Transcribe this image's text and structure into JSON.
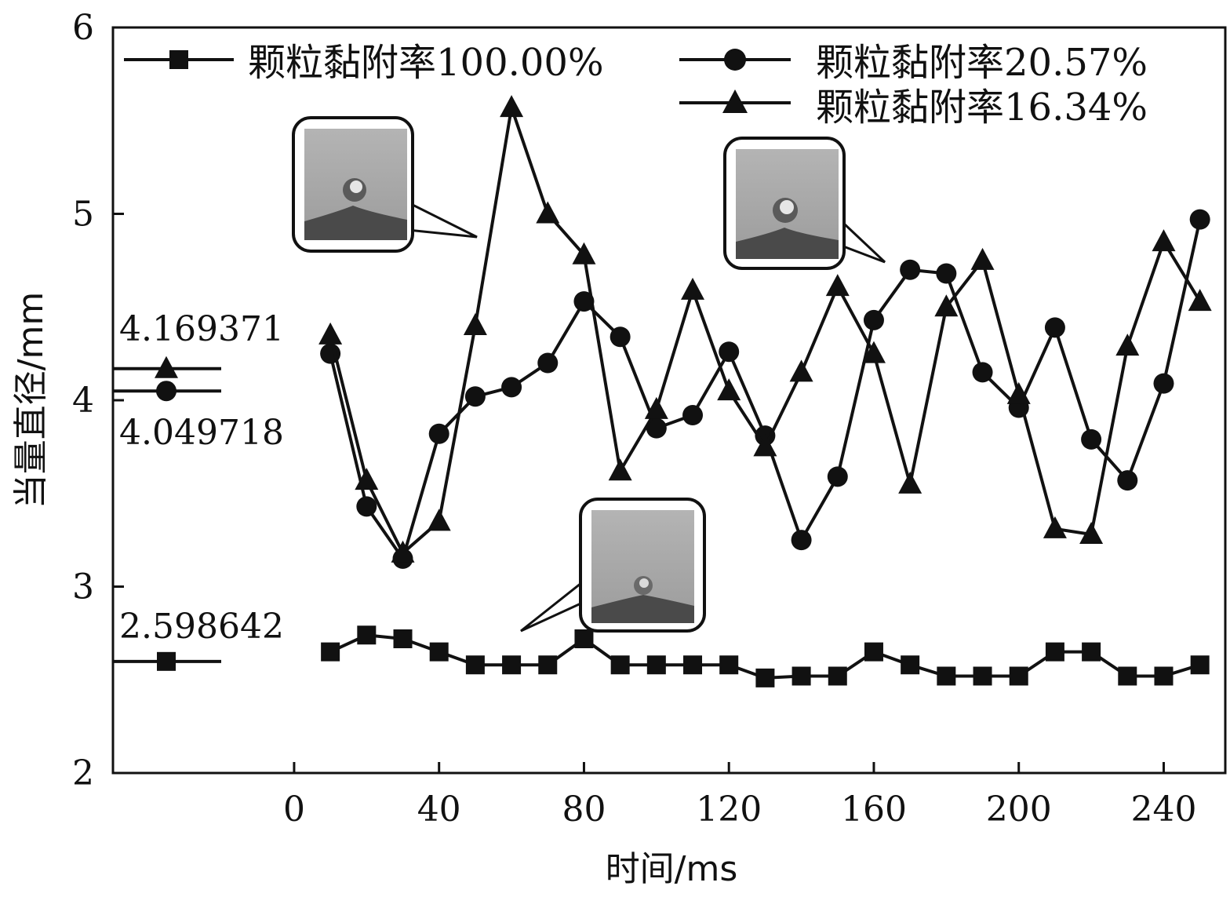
{
  "chart_data": {
    "type": "line",
    "xlabel": "时间/ms",
    "ylabel": "当量直径/mm",
    "xlim": [
      -50,
      257
    ],
    "ylim": [
      2,
      6
    ],
    "xticks": [
      0,
      40,
      80,
      120,
      160,
      200,
      240
    ],
    "yticks": [
      2,
      3,
      4,
      5,
      6
    ],
    "x": [
      10,
      20,
      30,
      40,
      50,
      60,
      70,
      80,
      90,
      100,
      110,
      120,
      130,
      140,
      150,
      160,
      170,
      180,
      190,
      200,
      210,
      220,
      230,
      240,
      250
    ],
    "series": [
      {
        "name": "颗粒黏附率100.00%",
        "marker": "square",
        "values": [
          2.65,
          2.74,
          2.72,
          2.65,
          2.58,
          2.58,
          2.58,
          2.72,
          2.58,
          2.58,
          2.58,
          2.58,
          2.51,
          2.52,
          2.52,
          2.65,
          2.58,
          2.52,
          2.52,
          2.52,
          2.65,
          2.65,
          2.52,
          2.52,
          2.58
        ],
        "reference": 2.598642,
        "reference_label": "2.598642"
      },
      {
        "name": "颗粒黏附率20.57%",
        "marker": "circle",
        "values": [
          4.25,
          3.43,
          3.15,
          3.82,
          4.02,
          4.07,
          4.2,
          4.53,
          4.34,
          3.85,
          3.92,
          4.26,
          3.81,
          3.25,
          3.59,
          4.43,
          4.7,
          4.68,
          4.15,
          3.96,
          4.39,
          3.79,
          3.57,
          4.09,
          4.97
        ],
        "reference": 4.049718,
        "reference_label": "4.049718"
      },
      {
        "name": "颗粒黏附率16.34%",
        "marker": "triangle",
        "values": [
          4.35,
          3.57,
          3.18,
          3.35,
          4.4,
          5.57,
          5.0,
          4.78,
          3.62,
          3.95,
          4.59,
          4.05,
          3.75,
          4.15,
          4.61,
          4.25,
          3.55,
          4.5,
          4.75,
          4.03,
          3.31,
          3.28,
          4.29,
          4.85,
          4.53
        ],
        "reference": 4.169371,
        "reference_label": "4.169371"
      }
    ],
    "legend_position": "top",
    "grid": false
  }
}
